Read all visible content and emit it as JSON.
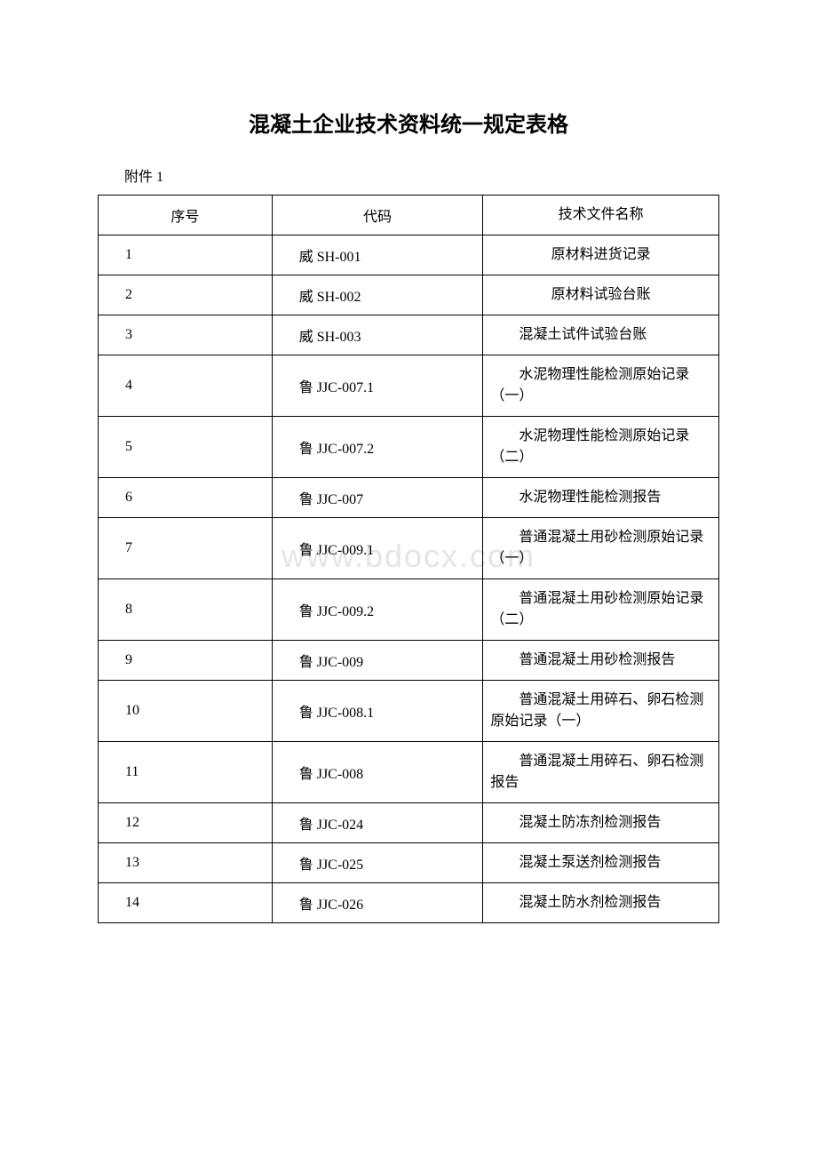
{
  "title": "混凝土企业技术资料统一规定表格",
  "subtitle": "附件 1",
  "watermark": "www.bdocx.com",
  "table": {
    "headers": [
      "序号",
      "代码",
      "技术文件名称"
    ],
    "rows": [
      {
        "seq": "1",
        "code": "威 SH-001",
        "name": "原材料进货记录",
        "centered": true
      },
      {
        "seq": "2",
        "code": "威 SH-002",
        "name": "原材料试验台账",
        "centered": true
      },
      {
        "seq": "3",
        "code": "威 SH-003",
        "name": "混凝土试件试验台账",
        "centered": false
      },
      {
        "seq": "4",
        "code": "鲁 JJC-007.1",
        "name": "水泥物理性能检测原始记录（一）",
        "centered": false
      },
      {
        "seq": "5",
        "code": "鲁 JJC-007.2",
        "name": "水泥物理性能检测原始记录（二）",
        "centered": false
      },
      {
        "seq": "6",
        "code": "鲁 JJC-007",
        "name": "水泥物理性能检测报告",
        "centered": false
      },
      {
        "seq": "7",
        "code": "鲁 JJC-009.1",
        "name": "普通混凝土用砂检测原始记录（一）",
        "centered": false
      },
      {
        "seq": "8",
        "code": "鲁 JJC-009.2",
        "name": "普通混凝土用砂检测原始记录（二）",
        "centered": false
      },
      {
        "seq": "9",
        "code": "鲁 JJC-009",
        "name": "普通混凝土用砂检测报告",
        "centered": false
      },
      {
        "seq": "10",
        "code": "鲁 JJC-008.1",
        "name": "普通混凝土用碎石、卵石检测原始记录（一）",
        "centered": false
      },
      {
        "seq": "11",
        "code": "鲁 JJC-008",
        "name": "普通混凝土用碎石、卵石检测报告",
        "centered": false
      },
      {
        "seq": "12",
        "code": "鲁 JJC-024",
        "name": "混凝土防冻剂检测报告",
        "centered": false
      },
      {
        "seq": "13",
        "code": "鲁 JJC-025",
        "name": "混凝土泵送剂检测报告",
        "centered": false
      },
      {
        "seq": "14",
        "code": "鲁 JJC-026",
        "name": "混凝土防水剂检测报告",
        "centered": false
      }
    ]
  }
}
